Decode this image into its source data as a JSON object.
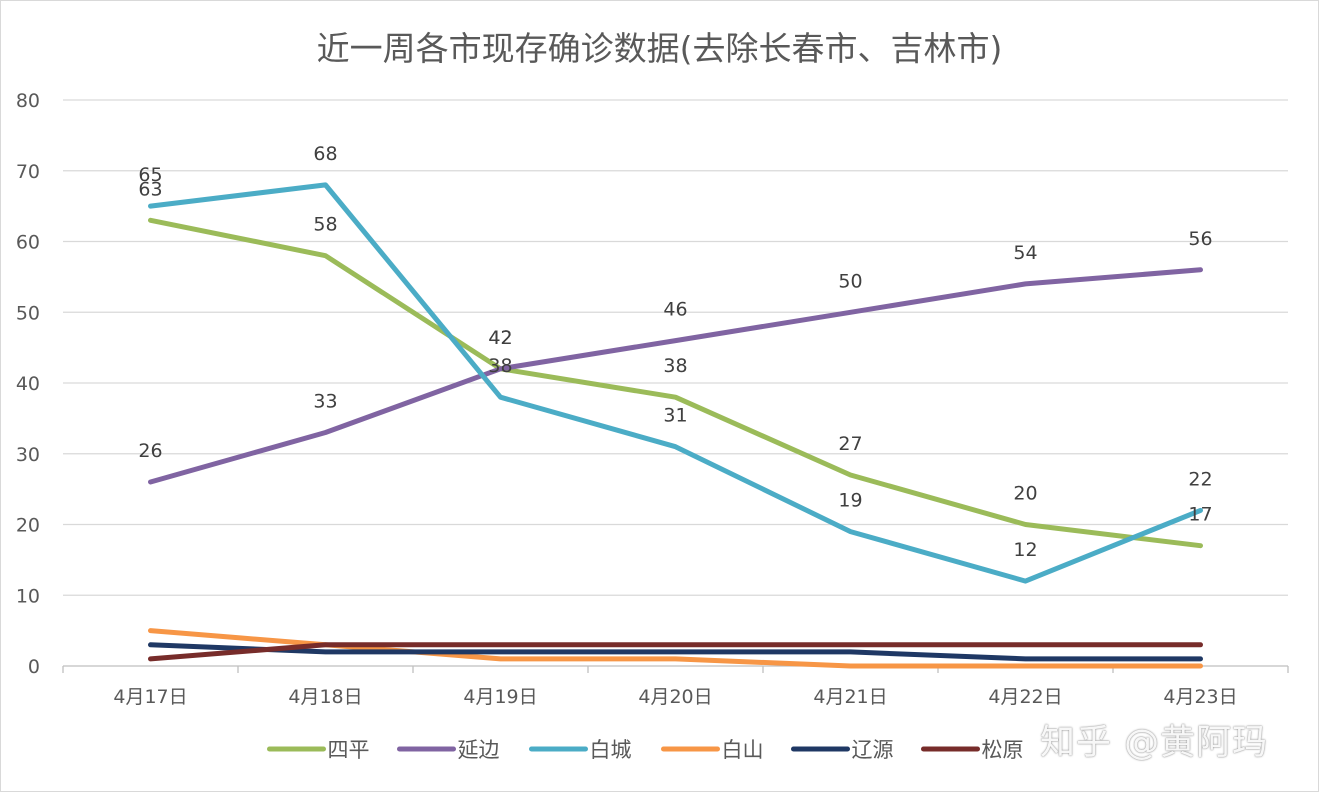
{
  "chart_data": {
    "type": "line",
    "title": "近一周各市现存确诊数据(去除长春市、吉林市)",
    "categories": [
      "4月17日",
      "4月18日",
      "4月19日",
      "4月20日",
      "4月21日",
      "4月22日",
      "4月23日"
    ],
    "ylim": [
      0,
      80
    ],
    "yticks": [
      0,
      10,
      20,
      30,
      40,
      50,
      60,
      70,
      80
    ],
    "grid": true,
    "legend_position": "bottom",
    "series": [
      {
        "name": "四平",
        "color": "#9bbb59",
        "values": [
          63,
          58,
          42,
          38,
          27,
          20,
          17
        ],
        "labeled": true
      },
      {
        "name": "延边",
        "color": "#8064a2",
        "values": [
          26,
          33,
          42,
          46,
          50,
          54,
          56
        ],
        "labeled": true
      },
      {
        "name": "白城",
        "color": "#4bacc6",
        "values": [
          65,
          68,
          38,
          31,
          19,
          12,
          22
        ],
        "labeled": true
      },
      {
        "name": "白山",
        "color": "#f79646",
        "values": [
          5,
          3,
          1,
          1,
          0,
          0,
          0
        ],
        "labeled": false
      },
      {
        "name": "辽源",
        "color": "#1f3864",
        "values": [
          3,
          2,
          2,
          2,
          2,
          1,
          1
        ],
        "labeled": false
      },
      {
        "name": "松原",
        "color": "#772c2a",
        "values": [
          1,
          3,
          3,
          3,
          3,
          3,
          3
        ],
        "labeled": false
      }
    ]
  },
  "watermark": "知乎 @黄阿玛"
}
